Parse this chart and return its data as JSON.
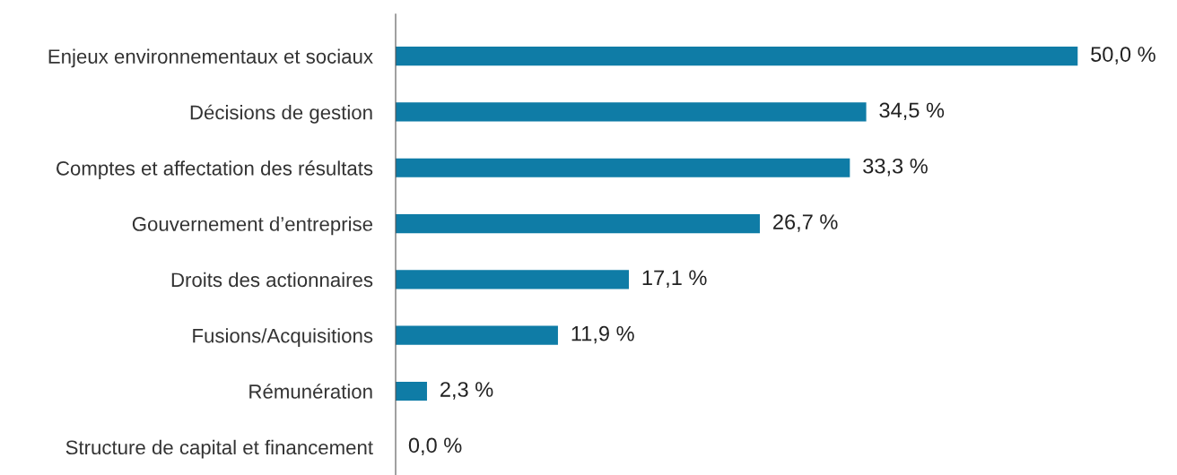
{
  "chart_data": {
    "type": "bar",
    "orientation": "horizontal",
    "relative": false,
    "categories": [
      "Enjeux environnementaux et sociaux",
      "Décisions de gestion",
      "Comptes et affectation des résultats",
      "Gouvernement d’entreprise",
      "Droits des actionnaires",
      "Fusions/Acquisitions",
      "Rémunération",
      "Structure de capital et financement"
    ],
    "values": [
      50.0,
      34.5,
      33.3,
      26.7,
      17.1,
      11.9,
      2.3,
      0.0
    ],
    "value_labels": [
      "50,0 %",
      "34,5 %",
      "33,3 %",
      "26,7 %",
      "17,1 %",
      "11,9 %",
      "2,3 %",
      "0,0 %"
    ],
    "color": "#0f7ca6",
    "grid": false,
    "legend": false,
    "tick_labels": "y"
  }
}
